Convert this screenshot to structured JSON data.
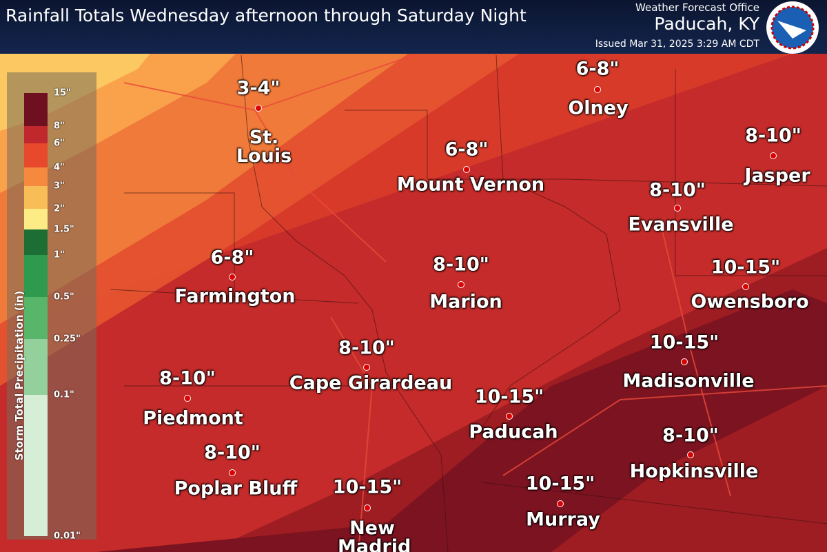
{
  "header": {
    "title": "Rainfall Totals Wednesday afternoon through Saturday Night",
    "office": "Weather Forecast Office",
    "location": "Paducah, KY",
    "issued": "Issued Mar 31, 2025 3:29 AM CDT"
  },
  "legend": {
    "title": "Storm Total Precipitation (in)",
    "ticks": [
      "15\"",
      "8\"",
      "6\"",
      "4\"",
      "3\"",
      "2\"",
      "1.5\"",
      "1\"",
      "0.5\"",
      "0.25\"",
      "0.1\"",
      "0.01\""
    ]
  },
  "cities": [
    {
      "name": "St. Louis",
      "amount": "3-4\""
    },
    {
      "name": "Olney",
      "amount": "6-8\""
    },
    {
      "name": "Jasper",
      "amount": "8-10\""
    },
    {
      "name": "Mount Vernon",
      "amount": "6-8\""
    },
    {
      "name": "Evansville",
      "amount": "8-10\""
    },
    {
      "name": "Owensboro",
      "amount": "10-15\""
    },
    {
      "name": "Farmington",
      "amount": "6-8\""
    },
    {
      "name": "Marion",
      "amount": "8-10\""
    },
    {
      "name": "Madisonville",
      "amount": "10-15\""
    },
    {
      "name": "Cape Girardeau",
      "amount": "8-10\""
    },
    {
      "name": "Piedmont",
      "amount": "8-10\""
    },
    {
      "name": "Paducah",
      "amount": "10-15\""
    },
    {
      "name": "Hopkinsville",
      "amount": "8-10\""
    },
    {
      "name": "Poplar Bluff",
      "amount": "8-10\""
    },
    {
      "name": "New Madrid",
      "amount": "10-15\""
    },
    {
      "name": "Murray",
      "amount": "10-15\""
    }
  ]
}
